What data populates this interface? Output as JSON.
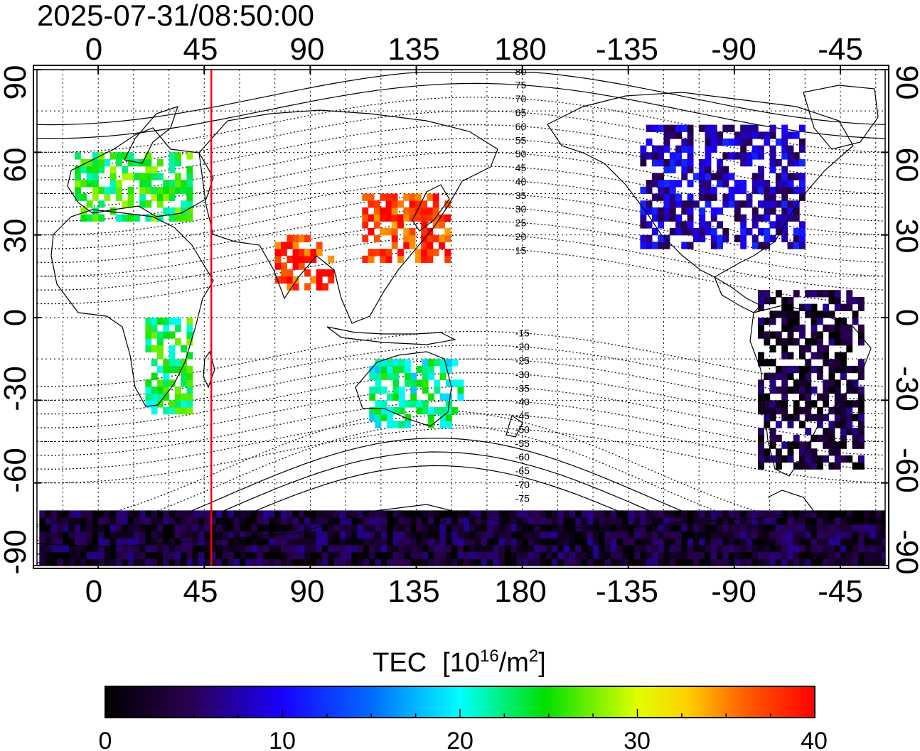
{
  "timestamp": "2025-07-31/08:50:00",
  "map": {
    "lon_ticks": [
      "0",
      "45",
      "90",
      "135",
      "180",
      "-135",
      "-90",
      "-45"
    ],
    "lat_ticks_left": [
      "90",
      "60",
      "30",
      "0",
      "-30",
      "-60",
      "-90"
    ],
    "lat_ticks_right": [
      "90",
      "60",
      "30",
      "0",
      "-30",
      "-60",
      "-90"
    ],
    "magnetic_lat_labels": [
      "80",
      "75",
      "70",
      "65",
      "60",
      "55",
      "50",
      "45",
      "40",
      "35",
      "30",
      "25",
      "20",
      "15",
      "-15",
      "-20",
      "-25",
      "-30",
      "-35",
      "-40",
      "-45",
      "-50",
      "-55",
      "-60",
      "-65",
      "-70",
      "-75"
    ],
    "subsolar_line_lon": 48,
    "subsolar_line_color": "#ff0000",
    "grid": "dotted",
    "tec_patches": [
      {
        "region": "Japan/China",
        "lon": [
          112,
          148
        ],
        "lat": [
          20,
          45
        ],
        "tec": 38
      },
      {
        "region": "India",
        "lon": [
          75,
          100
        ],
        "lat": [
          10,
          30
        ],
        "tec": 38
      },
      {
        "region": "Europe",
        "lon": [
          -10,
          40
        ],
        "lat": [
          35,
          60
        ],
        "tec": 25
      },
      {
        "region": "North America",
        "lon": [
          -130,
          -60
        ],
        "lat": [
          25,
          70
        ],
        "tec": 8
      },
      {
        "region": "South America",
        "lon": [
          -80,
          -35
        ],
        "lat": [
          -55,
          10
        ],
        "tec": 3
      },
      {
        "region": "Antarctica",
        "lon": [
          -180,
          180
        ],
        "lat": [
          -90,
          -70
        ],
        "tec": 3
      },
      {
        "region": "Australia",
        "lon": [
          115,
          155
        ],
        "lat": [
          -40,
          -15
        ],
        "tec": 22
      },
      {
        "region": "Southern Africa",
        "lon": [
          20,
          40
        ],
        "lat": [
          -35,
          0
        ],
        "tec": 24
      }
    ]
  },
  "colorbar": {
    "title": "TEC",
    "unit_open": "[10",
    "unit_exp1": "16",
    "unit_mid": "/m",
    "unit_exp2": "2",
    "unit_close": "]",
    "ticks": [
      "0",
      "10",
      "20",
      "30",
      "40"
    ],
    "min": 0,
    "max": 40
  }
}
